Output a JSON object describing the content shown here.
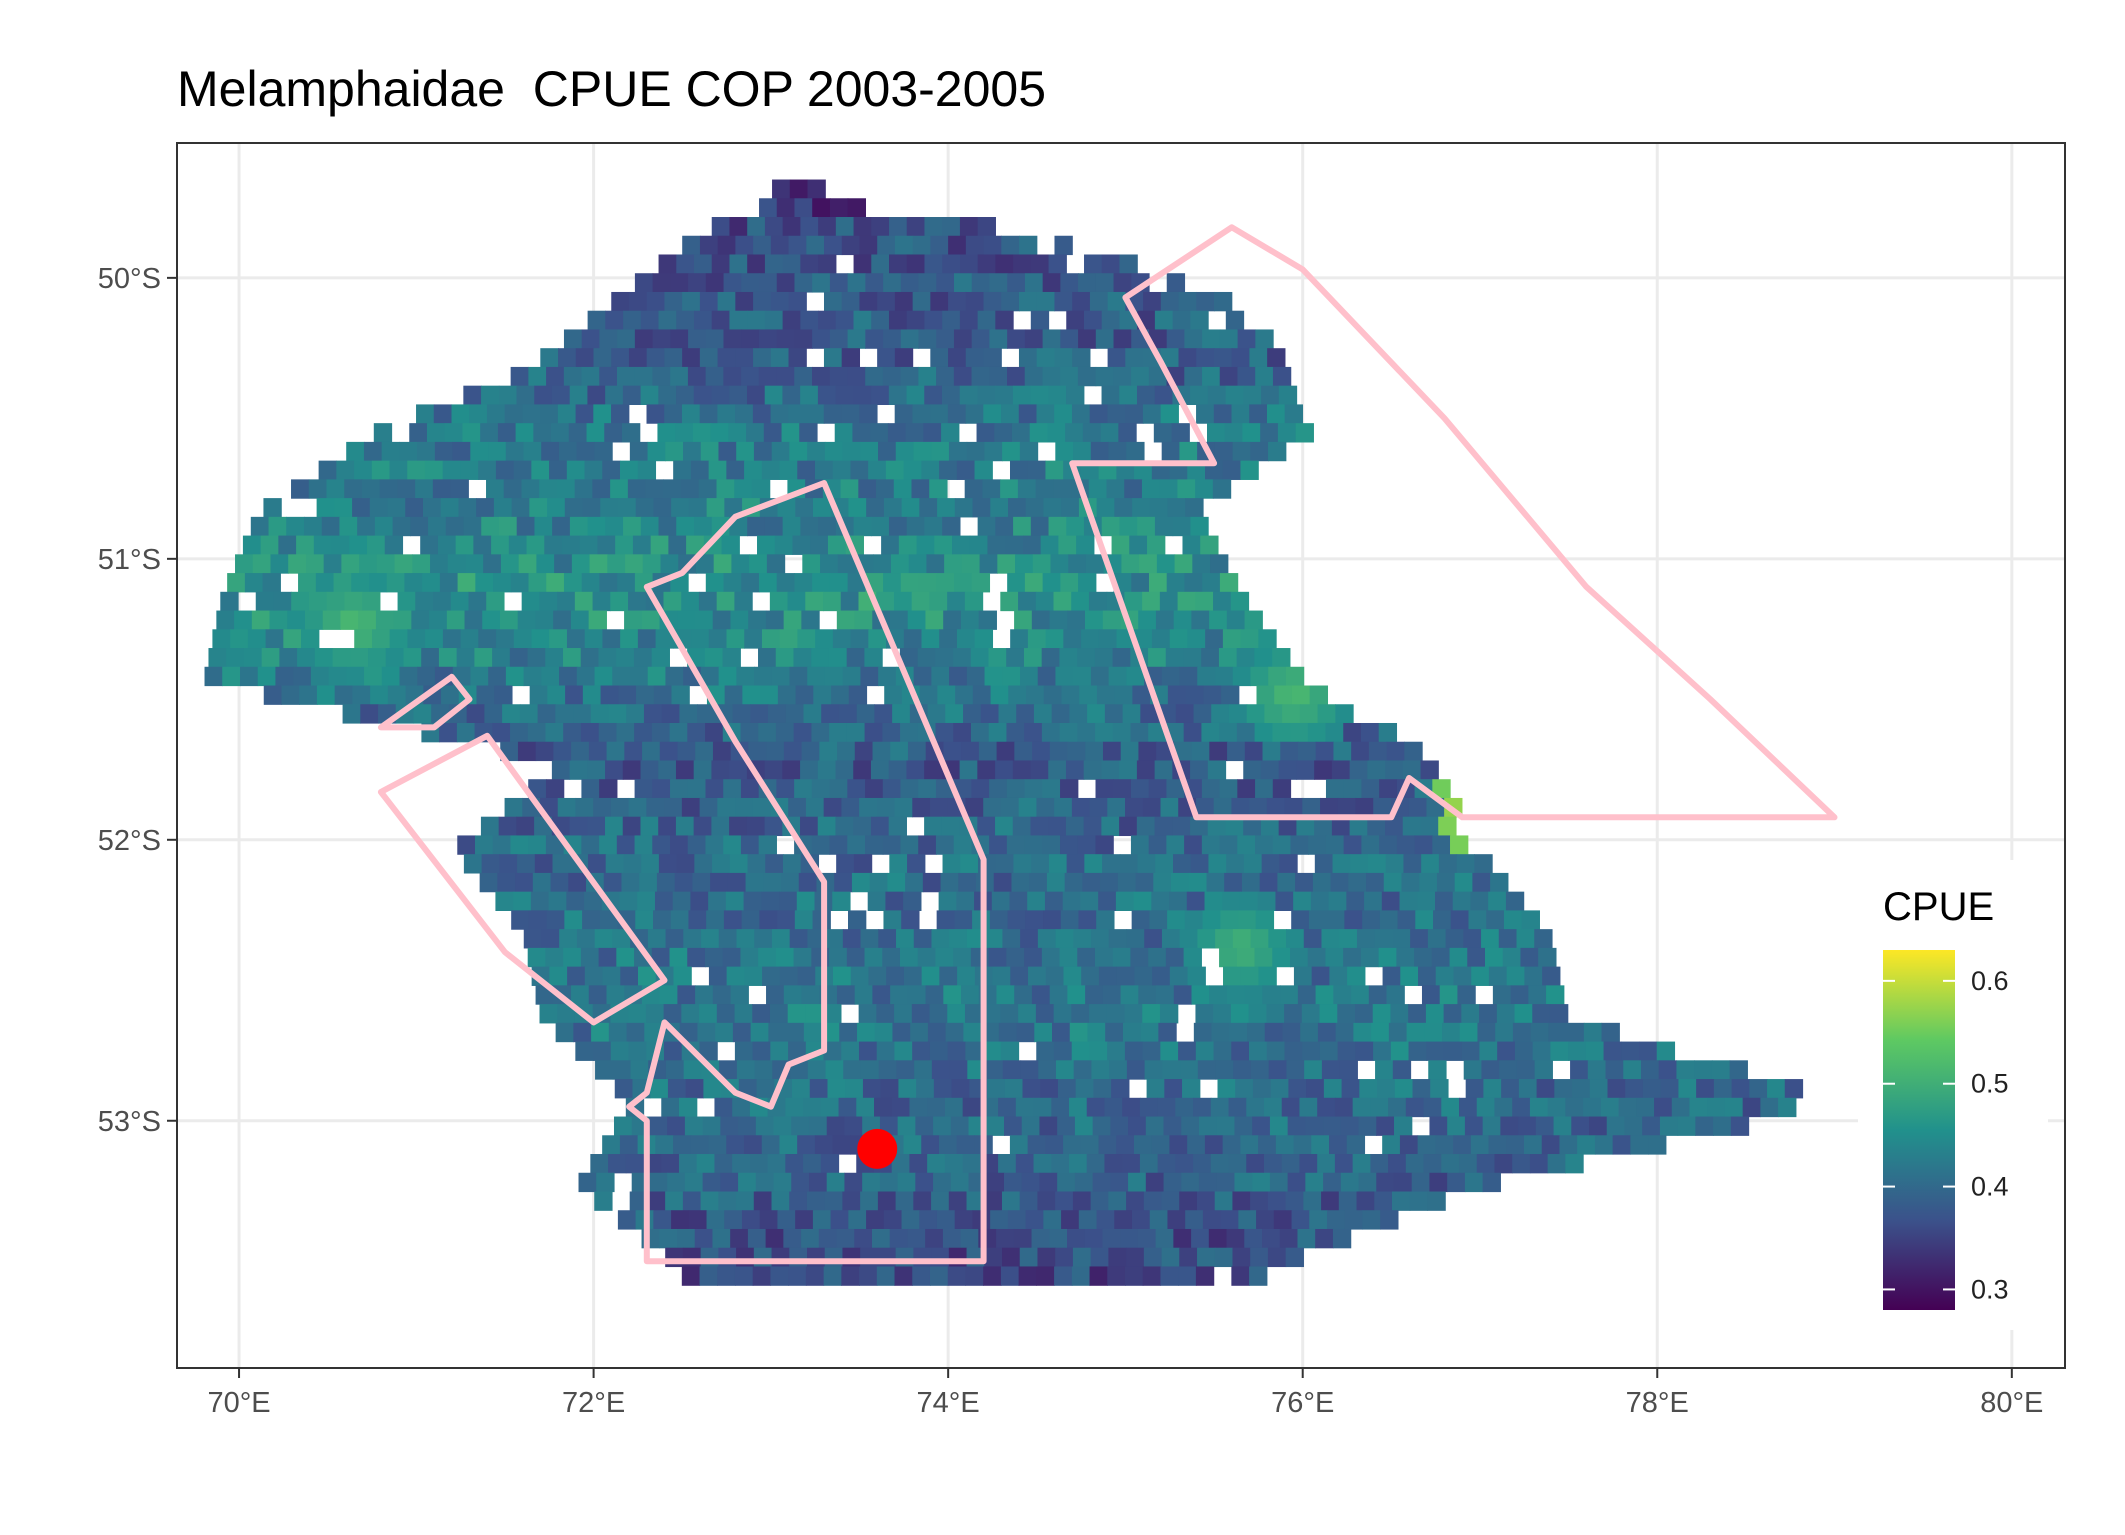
{
  "title": "Melamphaidae  CPUE COP 2003-2005",
  "chart_data": {
    "type": "heatmap",
    "title": "Melamphaidae  CPUE COP 2003-2005",
    "x_axis": {
      "range": [
        69.65,
        80.3
      ],
      "ticks": [
        70,
        72,
        74,
        76,
        78,
        80
      ],
      "tick_labels": [
        "70°E",
        "72°E",
        "74°E",
        "76°E",
        "78°E",
        "80°E"
      ]
    },
    "y_axis": {
      "range": [
        -53.88,
        -49.52
      ],
      "ticks": [
        -50,
        -51,
        -52,
        -53
      ],
      "tick_labels": [
        "50°S",
        "51°S",
        "52°S",
        "53°S"
      ]
    },
    "grid": true,
    "legend": {
      "title": "CPUE",
      "placement": "right",
      "range": [
        0.28,
        0.63
      ],
      "ticks": [
        0.3,
        0.4,
        0.5,
        0.6
      ],
      "tick_labels": [
        "0.3",
        "0.4",
        "0.5",
        "0.6"
      ],
      "colormap": [
        "#440154",
        "#3b528b",
        "#21918c",
        "#5ec962",
        "#fde725"
      ]
    },
    "cell_size_deg": {
      "lon": 0.1,
      "lat": 0.0667
    },
    "cpue_grid_rows": [
      {
        "lat": -49.7,
        "lon_range": [
          73.0,
          73.3
        ],
        "cpue": 0.33
      },
      {
        "lat": -49.8,
        "lon_range": [
          72.6,
          74.4
        ],
        "cpue": 0.37
      },
      {
        "lat": -50.0,
        "lon_range": [
          72.2,
          75.5
        ],
        "cpue": 0.38
      },
      {
        "lat": -50.3,
        "lon_range": [
          71.6,
          75.9
        ],
        "cpue": 0.39
      },
      {
        "lat": -50.5,
        "lon_range": [
          70.8,
          76.0
        ],
        "cpue": 0.42
      },
      {
        "lat": -50.8,
        "lon_range": [
          70.1,
          75.4
        ],
        "cpue": 0.43
      },
      {
        "lat": -51.1,
        "lon_range": [
          69.9,
          75.6
        ],
        "cpue": 0.46
      },
      {
        "lat": -51.4,
        "lon_range": [
          69.8,
          76.0
        ],
        "cpue": 0.42
      },
      {
        "lat": -51.7,
        "lon_range": [
          71.8,
          76.7
        ],
        "cpue": 0.38
      },
      {
        "lat": -52.0,
        "lon_range": [
          71.2,
          76.9
        ],
        "cpue": 0.4
      },
      {
        "lat": -52.3,
        "lon_range": [
          71.6,
          77.3
        ],
        "cpue": 0.41
      },
      {
        "lat": -52.6,
        "lon_range": [
          71.7,
          77.5
        ],
        "cpue": 0.42
      },
      {
        "lat": -52.9,
        "lon_range": [
          72.2,
          79.0
        ],
        "cpue": 0.4
      },
      {
        "lat": -53.2,
        "lon_range": [
          71.9,
          77.0
        ],
        "cpue": 0.39
      },
      {
        "lat": -53.5,
        "lon_range": [
          72.5,
          75.7
        ],
        "cpue": 0.36
      }
    ],
    "hotspots": [
      {
        "lon": 70.6,
        "lat": -51.2,
        "cpue": 0.52
      },
      {
        "lon": 75.6,
        "lat": -52.35,
        "cpue": 0.51
      },
      {
        "lon": 75.9,
        "lat": -51.45,
        "cpue": 0.52
      },
      {
        "lon": 77.05,
        "lat": -51.85,
        "cpue": 0.63
      }
    ],
    "polygons": [
      {
        "name": "",
        "color": "#ffc0cb",
        "points": [
          [
            75.0,
            -50.07
          ],
          [
            75.6,
            -49.82
          ],
          [
            76.0,
            -49.97
          ],
          [
            76.8,
            -50.5
          ],
          [
            77.6,
            -51.1
          ],
          [
            78.3,
            -51.5
          ],
          [
            79.0,
            -51.92
          ],
          [
            76.9,
            -51.92
          ],
          [
            76.6,
            -51.78
          ],
          [
            76.5,
            -51.92
          ],
          [
            75.4,
            -51.92
          ],
          [
            74.7,
            -50.66
          ],
          [
            75.5,
            -50.66
          ],
          [
            75.2,
            -50.3
          ]
        ]
      },
      {
        "name": "",
        "color": "#ffc0cb",
        "points": [
          [
            72.3,
            -51.1
          ],
          [
            72.5,
            -51.05
          ],
          [
            72.8,
            -50.85
          ],
          [
            73.3,
            -50.73
          ],
          [
            74.2,
            -52.07
          ],
          [
            74.2,
            -53.5
          ],
          [
            72.3,
            -53.5
          ],
          [
            72.3,
            -53.0
          ],
          [
            72.2,
            -52.95
          ],
          [
            72.3,
            -52.9
          ],
          [
            72.4,
            -52.65
          ],
          [
            72.8,
            -52.9
          ],
          [
            73.0,
            -52.95
          ],
          [
            73.1,
            -52.8
          ],
          [
            73.3,
            -52.75
          ],
          [
            73.3,
            -52.15
          ],
          [
            72.8,
            -51.65
          ]
        ]
      },
      {
        "name": "",
        "color": "#ffc0cb",
        "points": [
          [
            70.8,
            -51.83
          ],
          [
            71.4,
            -51.63
          ],
          [
            72.4,
            -52.5
          ],
          [
            72.0,
            -52.65
          ],
          [
            71.5,
            -52.4
          ]
        ]
      },
      {
        "name": "",
        "color": "#ffc0cb",
        "points": [
          [
            70.8,
            -51.6
          ],
          [
            71.2,
            -51.42
          ],
          [
            71.3,
            -51.5
          ],
          [
            71.1,
            -51.6
          ]
        ]
      }
    ],
    "point_marker": {
      "lon": 73.6,
      "lat": -53.1,
      "color": "#ff0000"
    }
  }
}
